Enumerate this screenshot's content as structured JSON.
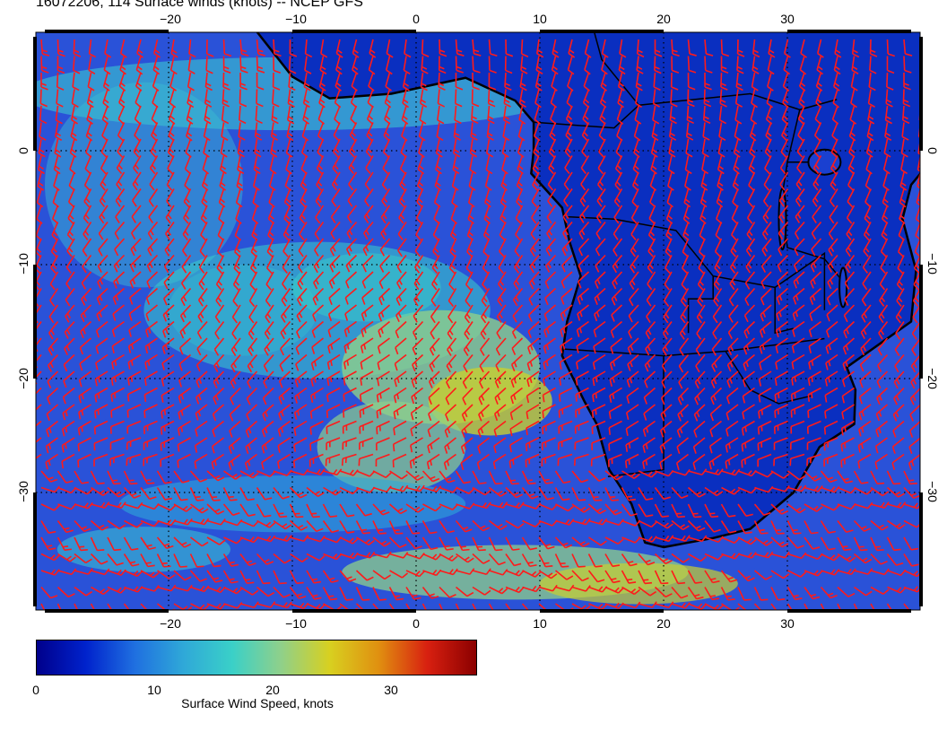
{
  "title": "16072206, 114 Surface winds (knots) -- NCEP GFS",
  "axes": {
    "lon_ticks": [
      "−20",
      "−10",
      "0",
      "10",
      "20",
      "30"
    ],
    "lat_ticks": [
      "0",
      "−10",
      "−20",
      "−30"
    ]
  },
  "colorbar": {
    "label": "Surface Wind Speed, knots",
    "ticks": [
      "0",
      "10",
      "20",
      "30"
    ],
    "range_knots": [
      0,
      37
    ],
    "colors": [
      "#00008b",
      "#0022cc",
      "#1f6fe0",
      "#2fa8d8",
      "#3ad0c8",
      "#8fd08a",
      "#d8d020",
      "#e09010",
      "#d82010",
      "#8b0000"
    ]
  },
  "map": {
    "lon_range": [
      -30,
      40
    ],
    "lat_range": [
      -40,
      9
    ],
    "ocean_color": "#2a52d8",
    "land_color": "#0a2fc0",
    "barb_color": "#ff1a1a",
    "coast_color": "#000000"
  }
}
